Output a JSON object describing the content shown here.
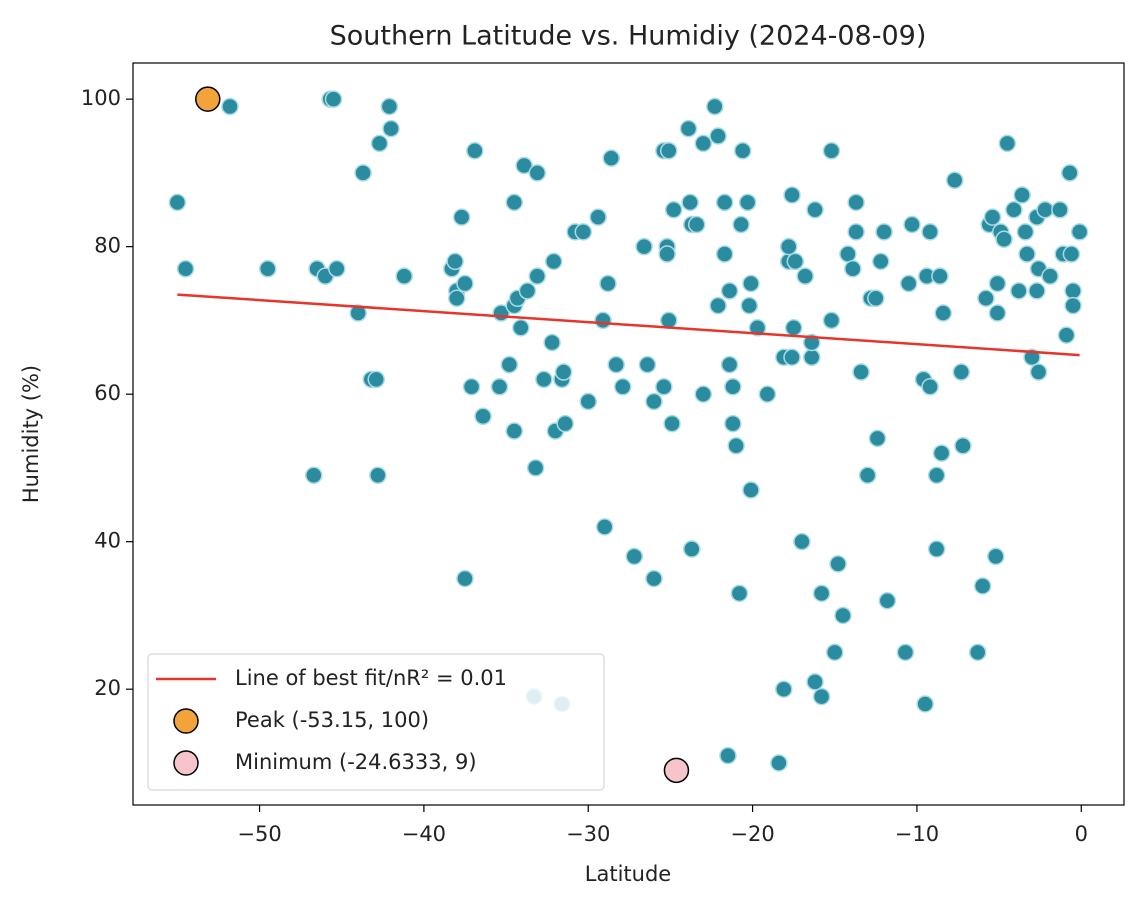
{
  "chart_data": {
    "type": "scatter",
    "title": "Southern Latitude vs. Humidiy (2024-08-09)",
    "xlabel": "Latitude",
    "ylabel": "Humidity (%)",
    "xlim": [
      -57.7,
      2.6
    ],
    "ylim": [
      4.3,
      104.9
    ],
    "xticks": [
      {
        "value": -50,
        "label": "−50"
      },
      {
        "value": -40,
        "label": "−40"
      },
      {
        "value": -30,
        "label": "−30"
      },
      {
        "value": -20,
        "label": "−20"
      },
      {
        "value": -10,
        "label": "−10"
      },
      0
    ],
    "yticks": [
      20,
      40,
      60,
      80,
      100
    ],
    "grid": false,
    "legend": "lower left",
    "series": [
      {
        "type": "scatter",
        "color": "#2b8b9f",
        "edgecolor": "#a9dbe6",
        "x": [
          -55.0,
          -54.5,
          -51.8,
          -49.5,
          -46.7,
          -46.5,
          -46.0,
          -45.7,
          -45.5,
          -45.3,
          -44.0,
          -43.7,
          -43.2,
          -42.9,
          -42.8,
          -42.7,
          -42.1,
          -42.0,
          -41.2,
          -38.3,
          -38.1,
          -38.0,
          -38.0,
          -37.7,
          -37.5,
          -37.5,
          -37.1,
          -36.9,
          -36.4,
          -35.4,
          -35.3,
          -34.8,
          -34.5,
          -34.5,
          -34.5,
          -34.3,
          -34.1,
          -33.9,
          -33.7,
          -33.3,
          -33.2,
          -33.1,
          -33.1,
          -32.7,
          -32.2,
          -32.1,
          -32.0,
          -31.6,
          -31.6,
          -31.5,
          -31.4,
          -30.8,
          -30.3,
          -30.0,
          -29.4,
          -29.1,
          -29.0,
          -28.8,
          -28.6,
          -28.3,
          -27.9,
          -27.2,
          -26.6,
          -26.4,
          -26.0,
          -26.0,
          -25.4,
          -25.4,
          -25.2,
          -25.2,
          -25.1,
          -25.1,
          -24.9,
          -24.8,
          -23.9,
          -23.8,
          -23.7,
          -23.7,
          -23.4,
          -23.0,
          -23.0,
          -22.3,
          -22.1,
          -22.1,
          -21.7,
          -21.7,
          -21.4,
          -21.4,
          -21.5,
          -21.2,
          -21.2,
          -21.0,
          -20.8,
          -20.7,
          -20.6,
          -20.3,
          -20.2,
          -20.1,
          -20.1,
          -19.7,
          -19.1,
          -18.4,
          -18.1,
          -18.1,
          -17.8,
          -17.8,
          -17.6,
          -17.6,
          -17.5,
          -17.4,
          -17.0,
          -16.8,
          -16.4,
          -16.4,
          -16.2,
          -16.2,
          -15.8,
          -15.8,
          -15.2,
          -15.2,
          -15.0,
          -14.8,
          -14.5,
          -14.2,
          -13.9,
          -13.7,
          -13.7,
          -13.4,
          -13.0,
          -12.8,
          -12.5,
          -12.4,
          -12.2,
          -12.0,
          -11.8,
          -10.7,
          -10.5,
          -10.3,
          -9.6,
          -9.5,
          -9.4,
          -9.2,
          -9.2,
          -8.8,
          -8.8,
          -8.6,
          -8.5,
          -8.4,
          -7.7,
          -7.3,
          -7.2,
          -6.3,
          -6.0,
          -5.8,
          -5.6,
          -5.4,
          -5.2,
          -5.1,
          -5.1,
          -4.9,
          -4.7,
          -4.5,
          -4.1,
          -3.8,
          -3.6,
          -3.4,
          -3.3,
          -3.0,
          -2.7,
          -2.7,
          -2.6,
          -2.6,
          -2.2,
          -1.9,
          -1.3,
          -1.1,
          -0.9,
          -0.7,
          -0.6,
          -0.5,
          -0.5,
          -0.1
        ],
        "values": [
          86,
          77,
          99,
          77,
          49,
          77,
          76,
          100,
          100,
          77,
          71,
          90,
          62,
          62,
          49,
          94,
          99,
          96,
          76,
          77,
          78,
          74,
          73,
          84,
          75,
          35,
          61,
          93,
          57,
          61,
          71,
          64,
          86,
          55,
          72,
          73,
          69,
          91,
          74,
          19,
          50,
          90,
          76,
          62,
          67,
          78,
          55,
          62,
          18,
          63,
          56,
          82,
          82,
          59,
          84,
          70,
          42,
          75,
          92,
          64,
          61,
          38,
          80,
          64,
          59,
          35,
          61,
          93,
          80,
          79,
          93,
          70,
          56,
          85,
          96,
          86,
          83,
          39,
          83,
          60,
          94,
          99,
          95,
          72,
          79,
          86,
          64,
          74,
          11,
          61,
          56,
          53,
          33,
          83,
          93,
          86,
          72,
          75,
          47,
          69,
          60,
          10,
          65,
          20,
          78,
          80,
          65,
          87,
          69,
          78,
          40,
          76,
          65,
          67,
          21,
          85,
          19,
          33,
          70,
          93,
          25,
          37,
          30,
          79,
          77,
          86,
          82,
          63,
          49,
          73,
          73,
          54,
          78,
          82,
          32,
          25,
          75,
          83,
          62,
          18,
          76,
          82,
          61,
          49,
          39,
          76,
          52,
          71,
          89,
          63,
          53,
          25,
          34,
          73,
          83,
          84,
          38,
          71,
          75,
          82,
          81,
          94,
          85,
          74,
          87,
          82,
          79,
          65,
          84,
          74,
          77,
          63,
          85,
          76,
          85,
          79,
          68,
          90,
          79,
          74,
          72,
          82
        ]
      },
      {
        "type": "line",
        "name": "Line of best fit/nR² = 0.01",
        "color": "#e8352b",
        "x": [
          -55.0,
          -0.1
        ],
        "values": [
          73.5,
          65.3
        ]
      },
      {
        "type": "scatter",
        "name": "Peak (-53.15, 100)",
        "color": "#f2a43a",
        "edgecolor": "#000000",
        "x": [
          -53.15
        ],
        "values": [
          100
        ]
      },
      {
        "type": "scatter",
        "name": "Minimum (-24.6333, 9)",
        "color": "#f7c4cb",
        "edgecolor": "#000000",
        "x": [
          -24.6333
        ],
        "values": [
          9
        ]
      }
    ]
  }
}
